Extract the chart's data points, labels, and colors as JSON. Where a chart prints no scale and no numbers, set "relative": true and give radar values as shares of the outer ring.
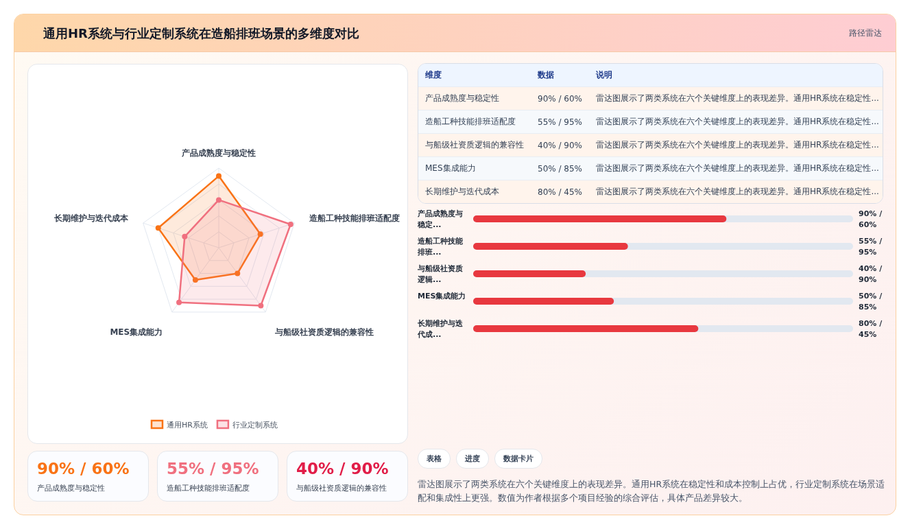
{
  "chart_data": [
    {
      "type": "other",
      "title": "通用HR系统与行业定制系统在造船排班场景的多维度对比",
      "subtitle": "路径雷达"
    },
    {
      "type": "radar",
      "categories": [
        "产品成熟度与稳定性",
        "造船工种技能排班适配度",
        "与船级社资质逻辑的兼容性",
        "MES集成能力",
        "长期维护与迭代成本"
      ],
      "relative": true,
      "legend": "bottom",
      "marker": "circle",
      "series": [
        {
          "name": "通用HR系统",
          "color": "#f97316",
          "values": [
            0.9,
            0.55,
            0.4,
            0.5,
            0.8
          ]
        },
        {
          "name": "行业定制系统",
          "color": "#f0707f",
          "values": [
            0.6,
            0.95,
            0.9,
            0.85,
            0.45
          ]
        }
      ]
    },
    {
      "type": "other",
      "categories": [
        "维度",
        "数据",
        "说明"
      ],
      "cell_labels": [
        [
          "产品成熟度与稳定性",
          "90% / 60%",
          "雷达图展示了两类系统在六个关键维度上的表现差异。通用HR系统在稳定性..."
        ],
        [
          "造船工种技能排班适配度",
          "55% / 95%",
          "雷达图展示了两类系统在六个关键维度上的表现差异。通用HR系统在稳定性..."
        ],
        [
          "与船级社资质逻辑的兼容性",
          "40% / 90%",
          "雷达图展示了两类系统在六个关键维度上的表现差异。通用HR系统在稳定性..."
        ],
        [
          "MES集成能力",
          "50% / 85%",
          "雷达图展示了两类系统在六个关键维度上的表现差异。通用HR系统在稳定性..."
        ],
        [
          "长期维护与迭代成本",
          "80% / 45%",
          "雷达图展示了两类系统在六个关键维度上的表现差异。通用HR系统在稳定性..."
        ]
      ]
    },
    {
      "type": "bar",
      "orientation": "horizontal",
      "categories": [
        "产品成熟度与稳定...",
        "造船工种技能排班...",
        "与船级社资质逻辑...",
        "MES集成能力",
        "长期维护与迭代成..."
      ],
      "values": [
        90,
        55,
        40,
        50,
        80
      ],
      "xlim": [
        0,
        135
      ],
      "value_labels": [
        "90% / 60%",
        "55% / 95%",
        "40% / 90%",
        "50% / 85%",
        "80% / 45%"
      ],
      "color": "#e8383f"
    },
    {
      "type": "other",
      "title": "90% / 60%",
      "subtitle": "产品成熟度与稳定性",
      "color": "#f97316"
    },
    {
      "type": "other",
      "title": "55% / 95%",
      "subtitle": "造船工种技能排班适配度",
      "color": "#f0707f"
    },
    {
      "type": "other",
      "title": "40% / 90%",
      "subtitle": "与船级社资质逻辑的兼容性",
      "color": "#e11d48"
    },
    {
      "type": "other",
      "annotations": [
        "表格",
        "进度",
        "数据卡片",
        "雷达图展示了两类系统在六个关键维度上的表现差异。通用HR系统在稳定性和成本控制上占优，行业定制系统在场景适配和集成性上更强。数值为作者根据多个项目经验的综合评估，具体产品差异较大。"
      ]
    }
  ]
}
